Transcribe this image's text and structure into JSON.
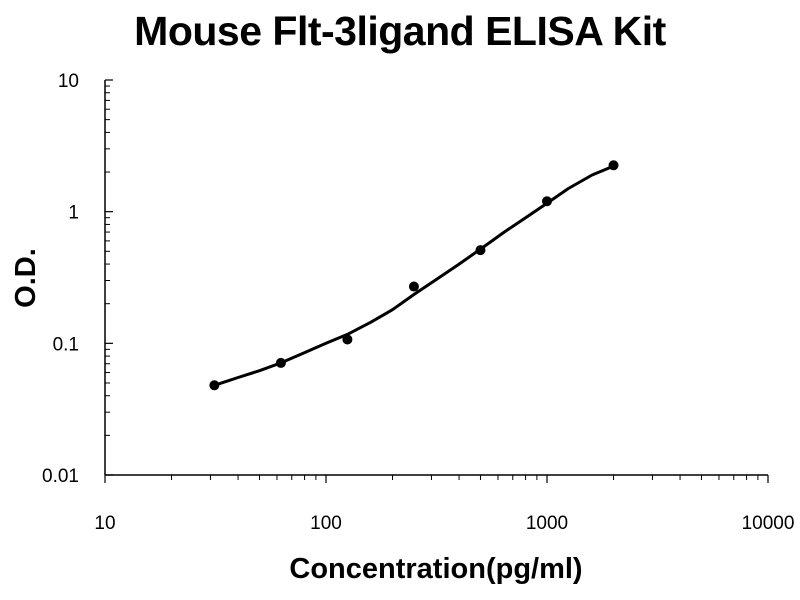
{
  "chart_data": {
    "type": "scatter",
    "title": "Mouse Flt-3ligand ELISA Kit",
    "xlabel": "Concentration(pg/ml)",
    "ylabel": "O.D.",
    "xscale": "log",
    "yscale": "log",
    "xlim": [
      10,
      10000
    ],
    "ylim": [
      0.01,
      10
    ],
    "x_tick_labels": [
      "10",
      "100",
      "1000",
      "10000"
    ],
    "y_tick_labels": [
      "0.01",
      "0.1",
      "1",
      "10"
    ],
    "grid": false,
    "legend": "none",
    "series": [
      {
        "x": [
          31.25,
          62.5,
          125,
          250,
          500,
          1000,
          2000
        ],
        "y": [
          0.048,
          0.071,
          0.107,
          0.27,
          0.51,
          1.2,
          2.25
        ]
      }
    ],
    "fit_curve": {
      "x": [
        31.25,
        40,
        50,
        62.5,
        80,
        100,
        125,
        160,
        200,
        250,
        320,
        400,
        500,
        640,
        800,
        1000,
        1250,
        1600,
        2000
      ],
      "y": [
        0.048,
        0.055,
        0.062,
        0.071,
        0.085,
        0.1,
        0.117,
        0.145,
        0.18,
        0.235,
        0.31,
        0.4,
        0.52,
        0.7,
        0.9,
        1.16,
        1.5,
        1.9,
        2.22
      ]
    },
    "colors": {
      "marker": "#000000",
      "curve": "#000000",
      "axis": "#000000"
    }
  }
}
